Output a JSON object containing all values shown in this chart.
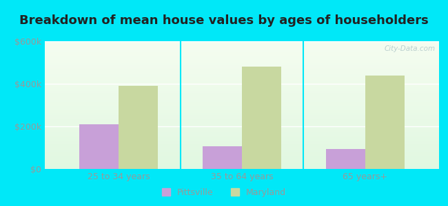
{
  "title": "Breakdown of mean house values by ages of householders",
  "categories": [
    "25 to 34 years",
    "35 to 64 years",
    "65 years+"
  ],
  "pittsville_values": [
    210000,
    105000,
    95000
  ],
  "maryland_values": [
    390000,
    480000,
    440000
  ],
  "ylim": [
    0,
    600000
  ],
  "yticks": [
    0,
    200000,
    400000,
    600000
  ],
  "ytick_labels": [
    "$0",
    "$200k",
    "$400k",
    "$600k"
  ],
  "pittsville_color": "#c8a0d8",
  "maryland_color": "#c8d8a0",
  "background_outer": "#00e8f8",
  "title_fontsize": 13,
  "legend_pittsville": "Pittsville",
  "legend_maryland": "Maryland",
  "bar_width": 0.32,
  "tick_color": "#999999",
  "title_color": "#222222",
  "watermark_text": "City-Data.com",
  "watermark_color": "#b0c8c8",
  "grid_color": "#ffffff"
}
